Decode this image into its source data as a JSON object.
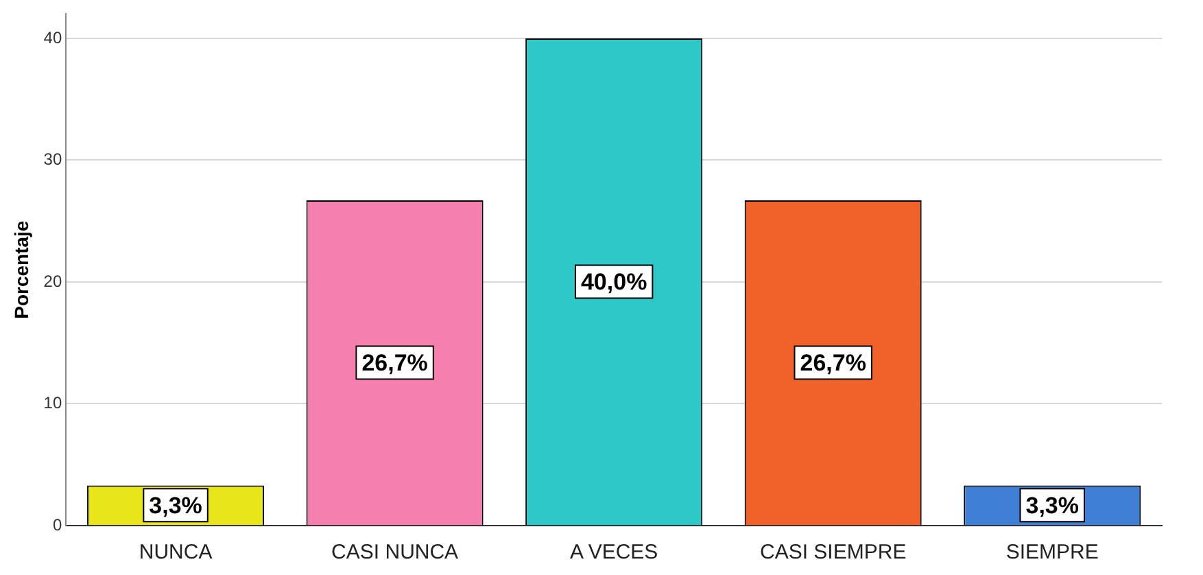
{
  "chart_data": {
    "type": "bar",
    "ylabel": "Porcentaje",
    "categories": [
      "NUNCA",
      "CASI NUNCA",
      "A VECES",
      "CASI SIEMPRE",
      "SIEMPRE"
    ],
    "values": [
      3.3,
      26.7,
      40.0,
      26.7,
      3.3
    ],
    "colors": [
      "#e6e619",
      "#f57fae",
      "#2ec8c8",
      "#f0622a",
      "#3f7fd6"
    ],
    "value_labels": [
      "3,3%",
      "26,7%",
      "40,0%",
      "26,7%",
      "3,3%"
    ],
    "ylim": [
      0,
      42
    ],
    "yticks": [
      0,
      10,
      20,
      30,
      40
    ],
    "grid": "y",
    "legend": false
  }
}
